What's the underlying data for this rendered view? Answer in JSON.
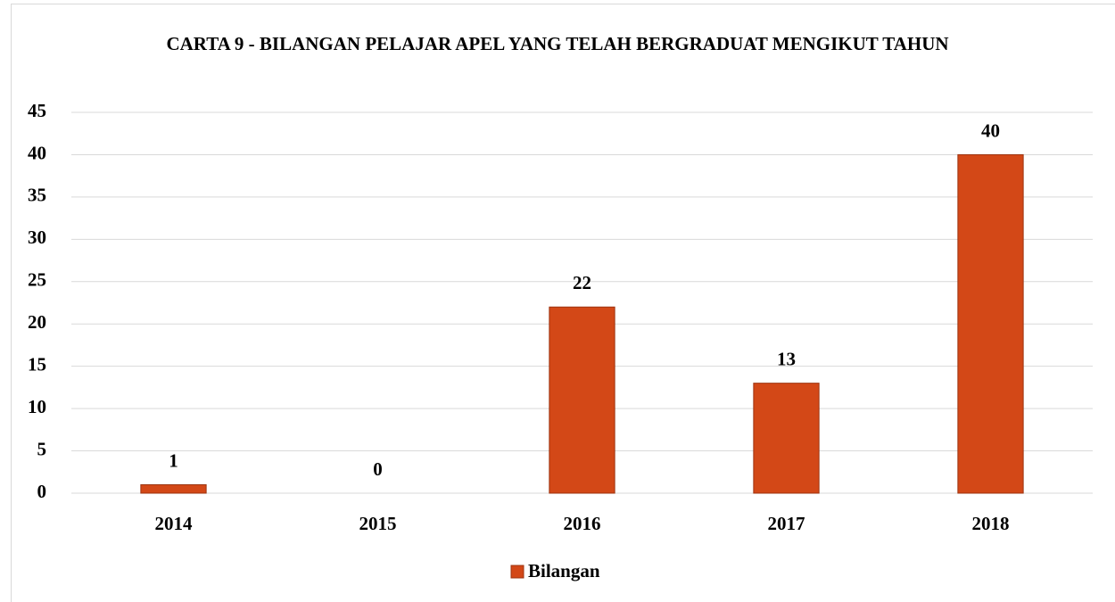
{
  "chart_data": {
    "type": "bar",
    "title": "CARTA 9 - BILANGAN PELAJAR APEL YANG TELAH BERGRADUAT MENGIKUT TAHUN",
    "categories": [
      "2014",
      "2015",
      "2016",
      "2017",
      "2018"
    ],
    "series": [
      {
        "name": "Bilangan",
        "color": "#d34817",
        "values": [
          1,
          0,
          22,
          13,
          40
        ]
      }
    ],
    "ylim": [
      0,
      45
    ],
    "yticks": [
      0,
      5,
      10,
      15,
      20,
      25,
      30,
      35,
      40,
      45
    ],
    "grid": true,
    "legend": "bottom"
  }
}
